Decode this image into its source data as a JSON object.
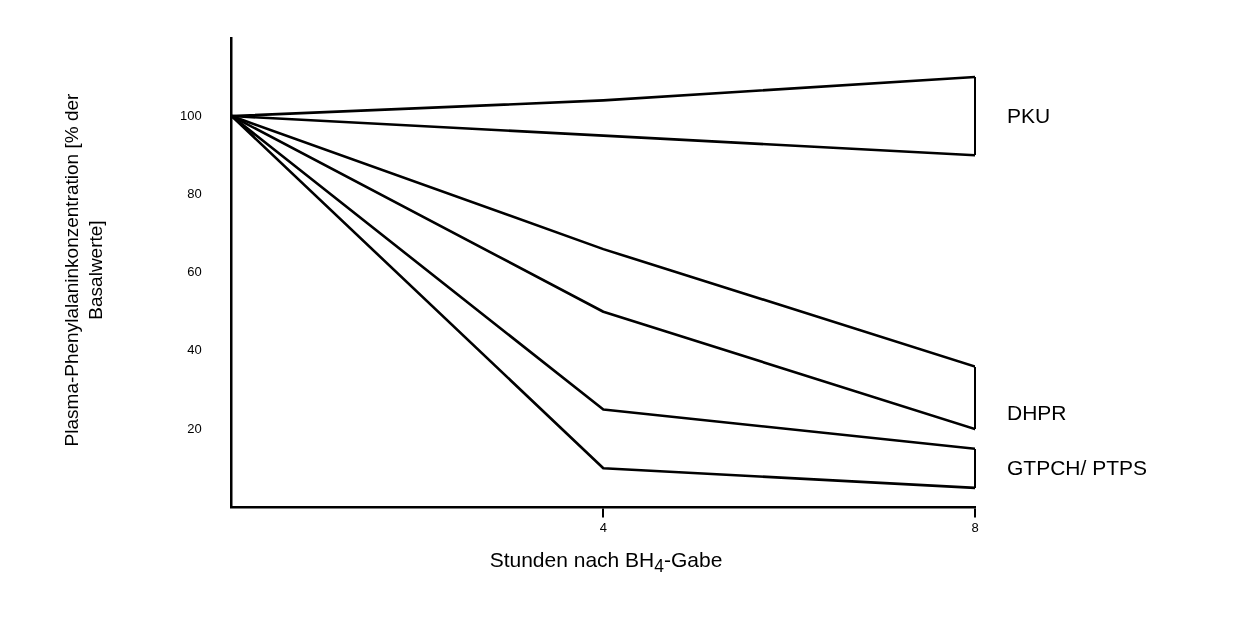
{
  "chart_data": {
    "type": "line",
    "xlabel": "Stunden nach BH$_{4}$-Gabe",
    "ylabel": "Plasma-Phenylalaninkonzentration [% der Basalwerte]",
    "x": [
      0,
      4,
      8
    ],
    "xlim": [
      0,
      8
    ],
    "xticks": [
      4,
      8
    ],
    "ylim": [
      0,
      120
    ],
    "yticks": [
      20,
      40,
      60,
      80,
      100
    ],
    "grid": false,
    "legend": false,
    "marker": "none",
    "line_style": "solid",
    "series": [
      {
        "color": "#000000",
        "values": [
          100,
          104,
          110
        ]
      },
      {
        "color": "#000000",
        "values": [
          100,
          95,
          90
        ]
      },
      {
        "color": "#000000",
        "values": [
          100,
          66,
          36
        ]
      },
      {
        "color": "#000000",
        "values": [
          100,
          50,
          20
        ]
      },
      {
        "color": "#000000",
        "values": [
          100,
          25,
          15
        ]
      },
      {
        "color": "#000000",
        "values": [
          100,
          10,
          5
        ]
      }
    ],
    "annotations": [
      "PKU",
      "DHPR",
      "GTPCH/ PTPS"
    ]
  }
}
